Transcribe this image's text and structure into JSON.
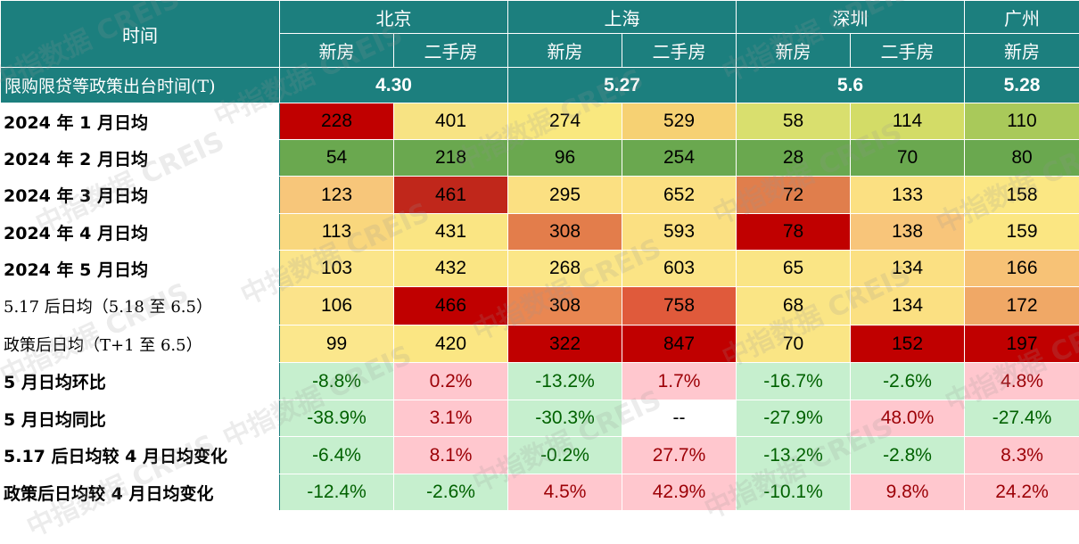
{
  "header": {
    "time_label": "时间",
    "cities": [
      "北京",
      "上海",
      "深圳",
      "广州"
    ],
    "new_house": "新房",
    "second_hand": "二手房",
    "policy_row_label": "限购限贷等政策出台时间(T)",
    "policy_dates": [
      "4.30",
      "5.27",
      "5.6",
      "5.28"
    ]
  },
  "rows": [
    {
      "label": "2024 年 1 月日均",
      "values": [
        "228",
        "401",
        "274",
        "529",
        "58",
        "114",
        "110"
      ]
    },
    {
      "label": "2024 年 2 月日均",
      "values": [
        "54",
        "218",
        "96",
        "254",
        "28",
        "70",
        "80"
      ]
    },
    {
      "label": "2024 年 3 月日均",
      "values": [
        "123",
        "461",
        "295",
        "652",
        "72",
        "133",
        "158"
      ]
    },
    {
      "label": "2024 年 4 月日均",
      "values": [
        "113",
        "431",
        "308",
        "593",
        "78",
        "138",
        "159"
      ]
    },
    {
      "label": "2024 年 5 月日均",
      "values": [
        "103",
        "432",
        "268",
        "603",
        "65",
        "134",
        "166"
      ]
    },
    {
      "label": "5.17 后日均（5.18 至 6.5）",
      "values": [
        "106",
        "466",
        "308",
        "758",
        "68",
        "134",
        "172"
      ]
    },
    {
      "label": "政策后日均（T+1 至 6.5）",
      "values": [
        "99",
        "420",
        "322",
        "847",
        "70",
        "152",
        "197"
      ]
    }
  ],
  "change_rows": [
    {
      "label": "5 月日均环比",
      "values": [
        "-8.8%",
        "0.2%",
        "-13.2%",
        "1.7%",
        "-16.7%",
        "-2.6%",
        "4.8%"
      ]
    },
    {
      "label": "5 月日均同比",
      "values": [
        "-38.9%",
        "3.1%",
        "-30.3%",
        "--",
        "-27.9%",
        "48.0%",
        "-27.4%"
      ]
    },
    {
      "label": "5.17 后日均较 4 月日均变化",
      "values": [
        "-6.4%",
        "8.1%",
        "-0.2%",
        "27.7%",
        "-13.2%",
        "-2.8%",
        "8.3%"
      ]
    },
    {
      "label": "政策后日均较 4 月日均变化",
      "values": [
        "-12.4%",
        "-2.6%",
        "4.5%",
        "42.9%",
        "-10.1%",
        "9.8%",
        "24.2%"
      ]
    }
  ],
  "heat_colors": [
    [
      "#c00000",
      "#f7e383",
      "#f9e87f",
      "#f6d173",
      "#d9df6e",
      "#d3dc67",
      "#a9c95a"
    ],
    [
      "#6aa84f",
      "#6aa84f",
      "#6aa84f",
      "#6aa84f",
      "#6aa84f",
      "#6aa84f",
      "#6aa84f"
    ],
    [
      "#f7c67a",
      "#c0271b",
      "#fbe082",
      "#fbe082",
      "#e07e4c",
      "#fbe082",
      "#fbe783"
    ],
    [
      "#f9d77d",
      "#fae583",
      "#e37d4b",
      "#fbe082",
      "#c00000",
      "#f8c57a",
      "#fbe682"
    ],
    [
      "#fbe58a",
      "#fae583",
      "#fbe687",
      "#fbe485",
      "#fae585",
      "#fbe082",
      "#f7c276"
    ],
    [
      "#fbe38a",
      "#c00000",
      "#e98752",
      "#e05a3b",
      "#fae585",
      "#fbe082",
      "#f0a866"
    ],
    [
      "#fbe78c",
      "#fbe683",
      "#c00000",
      "#c00000",
      "#fae585",
      "#c00000",
      "#c00000"
    ]
  ],
  "change_signs": [
    [
      "neg",
      "pos",
      "neg",
      "pos",
      "neg",
      "neg",
      "pos"
    ],
    [
      "neg",
      "pos",
      "neg",
      "blank",
      "neg",
      "pos",
      "neg"
    ],
    [
      "neg",
      "pos",
      "neg",
      "pos",
      "neg",
      "neg",
      "pos"
    ],
    [
      "neg",
      "neg",
      "pos",
      "pos",
      "neg",
      "pos",
      "pos"
    ]
  ],
  "watermark_text": [
    "中指数据 CREIS"
  ]
}
